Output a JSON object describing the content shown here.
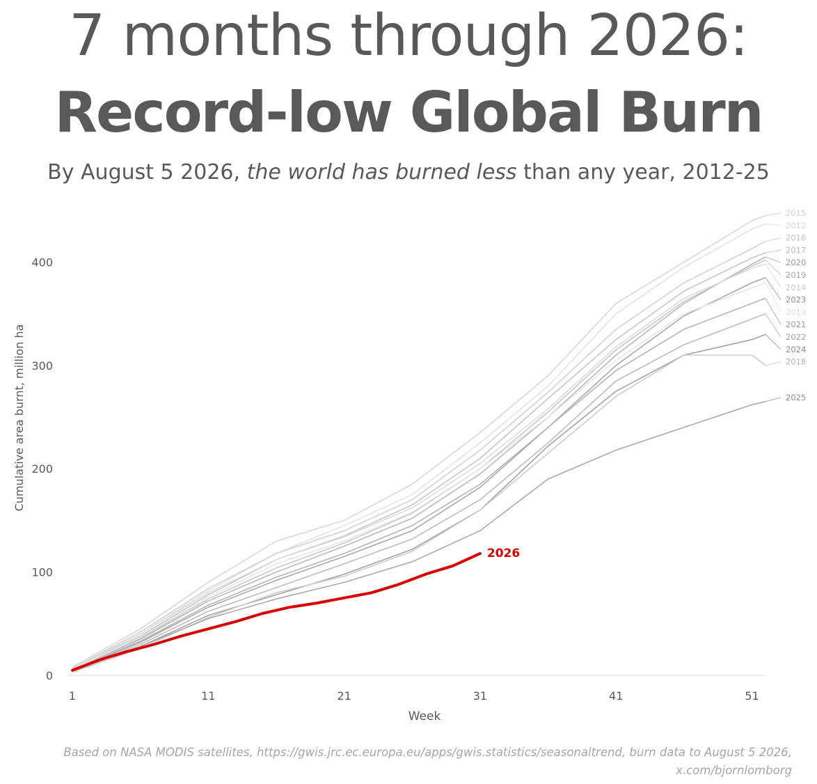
{
  "header": {
    "title_line1": "7 months through 2026:",
    "title_line2": "Record-low Global Burn",
    "subtitle_part1": "By August 5 2026, ",
    "subtitle_part2": "the world has burned less",
    "subtitle_part3": " than any year, 2012-25"
  },
  "footer": {
    "line1": "Based on NASA MODIS satellites, https://gwis.jrc.ec.europa.eu/apps/gwis.statistics/seasonaltrend, burn data to August 5 2026,",
    "line2": "x.com/bjornlomborg"
  },
  "colors": {
    "highlight": "#d90000",
    "text": "#595959",
    "axis": "#d9d9d9"
  },
  "chart_data": {
    "type": "line",
    "title": "",
    "xlabel": "Week",
    "ylabel": "Cumulative area burnt, million ha",
    "xlim": [
      1,
      52
    ],
    "ylim": [
      0,
      450
    ],
    "x_ticks": [
      1,
      11,
      21,
      31,
      41,
      51
    ],
    "y_ticks": [
      0,
      100,
      200,
      300,
      400
    ],
    "grid": false,
    "legend": "line-end labels at right",
    "series": [
      {
        "name": "2015",
        "color": "#d8d8d8",
        "label_color": "#cfcfcf",
        "weeks": [
          1,
          6,
          11,
          16,
          21,
          26,
          31,
          36,
          41,
          46,
          51,
          52
        ],
        "values": [
          8,
          45,
          90,
          130,
          150,
          185,
          235,
          290,
          360,
          400,
          440,
          445
        ]
      },
      {
        "name": "2012",
        "color": "#e3e3e3",
        "label_color": "#d6d6d6",
        "weeks": [
          1,
          6,
          11,
          16,
          21,
          26,
          31,
          36,
          41,
          46,
          51,
          52
        ],
        "values": [
          6,
          40,
          82,
          118,
          145,
          175,
          225,
          280,
          350,
          395,
          432,
          437
        ]
      },
      {
        "name": "2016",
        "color": "#d2d2d2",
        "label_color": "#c4c4c4",
        "weeks": [
          1,
          6,
          11,
          16,
          21,
          26,
          31,
          36,
          41,
          46,
          51,
          52
        ],
        "values": [
          7,
          42,
          84,
          118,
          140,
          170,
          218,
          274,
          335,
          380,
          413,
          420
        ]
      },
      {
        "name": "2017",
        "color": "#c6c6c6",
        "label_color": "#b8b8b8",
        "weeks": [
          1,
          6,
          11,
          16,
          21,
          26,
          31,
          36,
          41,
          46,
          51,
          52
        ],
        "values": [
          6,
          38,
          78,
          112,
          135,
          165,
          210,
          268,
          325,
          372,
          404,
          409
        ]
      },
      {
        "name": "2020",
        "color": "#b9b9b9",
        "label_color": "#9a9a9a",
        "weeks": [
          1,
          6,
          11,
          16,
          21,
          26,
          31,
          36,
          41,
          46,
          51,
          52
        ],
        "values": [
          5,
          35,
          72,
          100,
          125,
          152,
          195,
          250,
          310,
          360,
          398,
          405
        ]
      },
      {
        "name": "2019",
        "color": "#c8c8c8",
        "label_color": "#a8a8a8",
        "weeks": [
          1,
          6,
          11,
          16,
          21,
          26,
          31,
          36,
          41,
          46,
          51,
          52
        ],
        "values": [
          6,
          36,
          74,
          104,
          128,
          157,
          200,
          255,
          315,
          362,
          396,
          402
        ]
      },
      {
        "name": "2014",
        "color": "#dcdcdc",
        "label_color": "#cacaca",
        "weeks": [
          1,
          6,
          11,
          16,
          21,
          26,
          31,
          36,
          41,
          46,
          51,
          52
        ],
        "values": [
          7,
          40,
          80,
          112,
          134,
          162,
          205,
          258,
          318,
          365,
          394,
          398
        ]
      },
      {
        "name": "2023",
        "color": "#a8a8a8",
        "label_color": "#8c8c8c",
        "weeks": [
          1,
          6,
          11,
          16,
          21,
          26,
          31,
          36,
          41,
          46,
          51,
          52
        ],
        "values": [
          5,
          32,
          66,
          92,
          115,
          140,
          182,
          240,
          300,
          348,
          380,
          385
        ]
      },
      {
        "name": "2013",
        "color": "#e6e6e6",
        "label_color": "#dadada",
        "weeks": [
          1,
          6,
          11,
          16,
          21,
          26,
          31,
          36,
          41,
          46,
          51,
          52
        ],
        "values": [
          6,
          37,
          76,
          108,
          130,
          158,
          200,
          250,
          305,
          350,
          375,
          380
        ]
      },
      {
        "name": "2021",
        "color": "#b4b4b4",
        "label_color": "#999999",
        "weeks": [
          1,
          6,
          11,
          16,
          21,
          26,
          31,
          36,
          41,
          46,
          51,
          52
        ],
        "values": [
          5,
          33,
          68,
          95,
          118,
          145,
          185,
          240,
          295,
          335,
          360,
          365
        ]
      },
      {
        "name": "2022",
        "color": "#bcbcbc",
        "label_color": "#9e9e9e",
        "weeks": [
          1,
          6,
          11,
          16,
          21,
          26,
          31,
          36,
          41,
          46,
          51,
          52
        ],
        "values": [
          5,
          30,
          62,
          85,
          108,
          132,
          170,
          225,
          285,
          320,
          345,
          350
        ]
      },
      {
        "name": "2024",
        "color": "#a3a3a3",
        "label_color": "#8c8c8c",
        "weeks": [
          1,
          6,
          11,
          16,
          21,
          26,
          31,
          36,
          41,
          46,
          51,
          52
        ],
        "values": [
          5,
          28,
          58,
          78,
          98,
          122,
          160,
          222,
          275,
          310,
          325,
          330
        ]
      },
      {
        "name": "2018",
        "color": "#cdcdcd",
        "label_color": "#b2b2b2",
        "weeks": [
          1,
          6,
          11,
          16,
          21,
          26,
          31,
          36,
          41,
          46,
          51,
          52
        ],
        "values": [
          3,
          26,
          56,
          80,
          96,
          120,
          160,
          215,
          270,
          310,
          310,
          300
        ]
      },
      {
        "name": "2025",
        "color": "#a9a9a9",
        "label_color": "#8c8c8c",
        "weeks": [
          1,
          6,
          11,
          16,
          21,
          26,
          31,
          36,
          41,
          46,
          51,
          52
        ],
        "values": [
          4,
          28,
          55,
          74,
          90,
          110,
          140,
          190,
          218,
          240,
          262,
          265
        ]
      },
      {
        "name": "2026",
        "color": "#d90000",
        "label_color": "#d90000",
        "highlight": true,
        "weeks": [
          1,
          3,
          5,
          7,
          9,
          11,
          13,
          15,
          17,
          19,
          21,
          23,
          25,
          27,
          29,
          31
        ],
        "values": [
          5,
          15,
          23,
          30,
          38,
          45,
          52,
          60,
          66,
          70,
          75,
          80,
          88,
          98,
          106,
          118
        ]
      }
    ]
  }
}
